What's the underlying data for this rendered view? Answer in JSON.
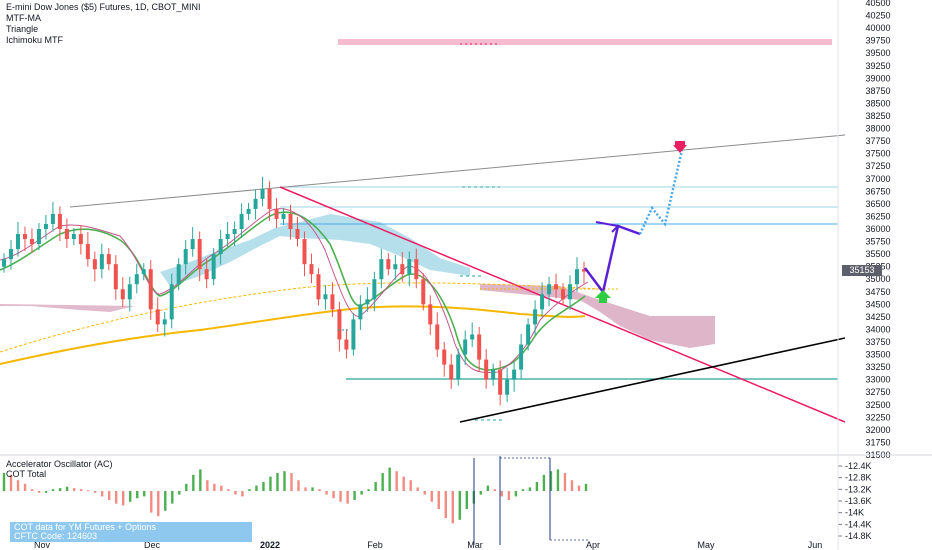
{
  "legend": {
    "title": "E-mini Dow Jones ($5) Futures, 1D, CBOT_MINI",
    "indicators": [
      "MTF-MA",
      "Triangle",
      "Ichimoku MTF"
    ]
  },
  "oscillator": {
    "name": "Accelerator Oscillator (AC)",
    "overlay": "COT Total",
    "cot_note_line1": "COT data for YM Futures + Options",
    "cot_note_line2": "CFTC Code: 124603"
  },
  "last_price": "35153",
  "colors": {
    "up_candle": "#26a69a",
    "down_candle": "#ef5350",
    "cloud_bull": "#9ed4e6",
    "cloud_bear": "#d9a9bf",
    "ma_fast": "#8b2a8b",
    "ma_mid": "#4caf50",
    "ma_slow": "#f5b700",
    "downtrend_line": "#e91e63",
    "support_line": "#000000",
    "resistance_line": "#8c8c8c",
    "projection_solid": "#5a1fd6",
    "projection_dotted": "#4aa8e8",
    "target_zone": "#f5bcd0"
  },
  "chart_data": {
    "type": "candlestick",
    "title": "E-mini Dow Jones ($5) Futures, 1D, CBOT_MINI",
    "x_axis_labels": [
      "Nov",
      "Dec",
      "2022",
      "Feb",
      "Mar",
      "Apr",
      "May",
      "Jun"
    ],
    "y_axis_labels": [
      "40500",
      "40250",
      "40000",
      "39750",
      "39500",
      "39250",
      "39000",
      "38750",
      "38500",
      "38250",
      "38000",
      "37750",
      "37500",
      "37250",
      "37000",
      "36750",
      "36500",
      "36250",
      "36000",
      "35750",
      "35500",
      "35250",
      "35000",
      "34750",
      "34500",
      "34250",
      "34000",
      "33750",
      "33500",
      "33250",
      "33000",
      "32750",
      "32500",
      "32250",
      "32000",
      "31750",
      "31500"
    ],
    "ylim": [
      31500,
      40500
    ],
    "candles_close_approx": [
      35400,
      35600,
      35900,
      35800,
      35700,
      36000,
      36100,
      36300,
      36000,
      35800,
      35900,
      35700,
      35400,
      35200,
      35500,
      35300,
      34800,
      34600,
      34900,
      35100,
      35200,
      34400,
      34100,
      34200,
      34900,
      35300,
      35600,
      35800,
      35200,
      35000,
      35500,
      35800,
      35900,
      36000,
      36300,
      36400,
      36600,
      36800,
      36400,
      36200,
      36300,
      36000,
      35800,
      35300,
      35100,
      34600,
      34700,
      34400,
      33800,
      33600,
      34200,
      34500,
      34600,
      35000,
      35400,
      35200,
      35300,
      35100,
      35400,
      35000,
      34500,
      34100,
      33600,
      33300,
      33000,
      33500,
      33800,
      33900,
      33400,
      33000,
      33200,
      32700,
      33000,
      33200,
      33700,
      34100,
      34400,
      34700,
      34900,
      34800,
      34600,
      34900,
      35200,
      35153
    ],
    "support_line": [
      {
        "x": "2022-03-08",
        "y": 32200
      },
      {
        "x": "2022-06-10",
        "y": 33800
      }
    ],
    "downtrend_line": [
      {
        "x": "2022-01-05",
        "y": 36900
      },
      {
        "x": "2022-06-10",
        "y": 32200
      }
    ],
    "upper_resistance_line": [
      {
        "x": "2021-11-05",
        "y": 36500
      },
      {
        "x": "2022-06-10",
        "y": 37850
      }
    ],
    "horizontal_levels": [
      36880,
      36450,
      36130,
      33030
    ],
    "projection_path": [
      35300,
      34900,
      36100,
      35900,
      36500,
      36200,
      37600
    ],
    "target_zone": [
      39750,
      39850
    ],
    "target_marker": 37650
  },
  "osc_data": {
    "y_axis_labels": [
      "-12.4K",
      "-12.8K",
      "-13.2K",
      "-13.6K",
      "-14K",
      "-14.4K",
      "-14.8K"
    ],
    "ac_values": [
      0.5,
      0.45,
      0.3,
      0.2,
      0.05,
      -0.05,
      -0.05,
      0.05,
      0.08,
      0.12,
      0.08,
      0.05,
      0.02,
      -0.05,
      -0.15,
      -0.25,
      -0.35,
      -0.4,
      -0.3,
      -0.2,
      -0.15,
      -0.6,
      -0.7,
      -0.55,
      -0.35,
      -0.1,
      0.2,
      0.45,
      0.6,
      0.3,
      0.2,
      0.15,
      0.05,
      -0.1,
      -0.15,
      0.05,
      0.15,
      0.25,
      0.4,
      0.5,
      0.55,
      0.5,
      0.3,
      0.1,
      0.1,
      0.05,
      -0.1,
      -0.2,
      -0.3,
      -0.35,
      -0.25,
      -0.1,
      0.05,
      0.25,
      0.5,
      0.65,
      0.55,
      0.4,
      0.3,
      0.1,
      -0.1,
      -0.3,
      -0.5,
      -0.75,
      -0.9,
      -0.8,
      -0.5,
      -0.35,
      -0.1,
      0.15,
      0.05,
      -0.15,
      -0.25,
      -0.15,
      0.05,
      0.1,
      0.25,
      0.45,
      0.55,
      0.6,
      0.5,
      0.3,
      0.15,
      0.2
    ]
  }
}
